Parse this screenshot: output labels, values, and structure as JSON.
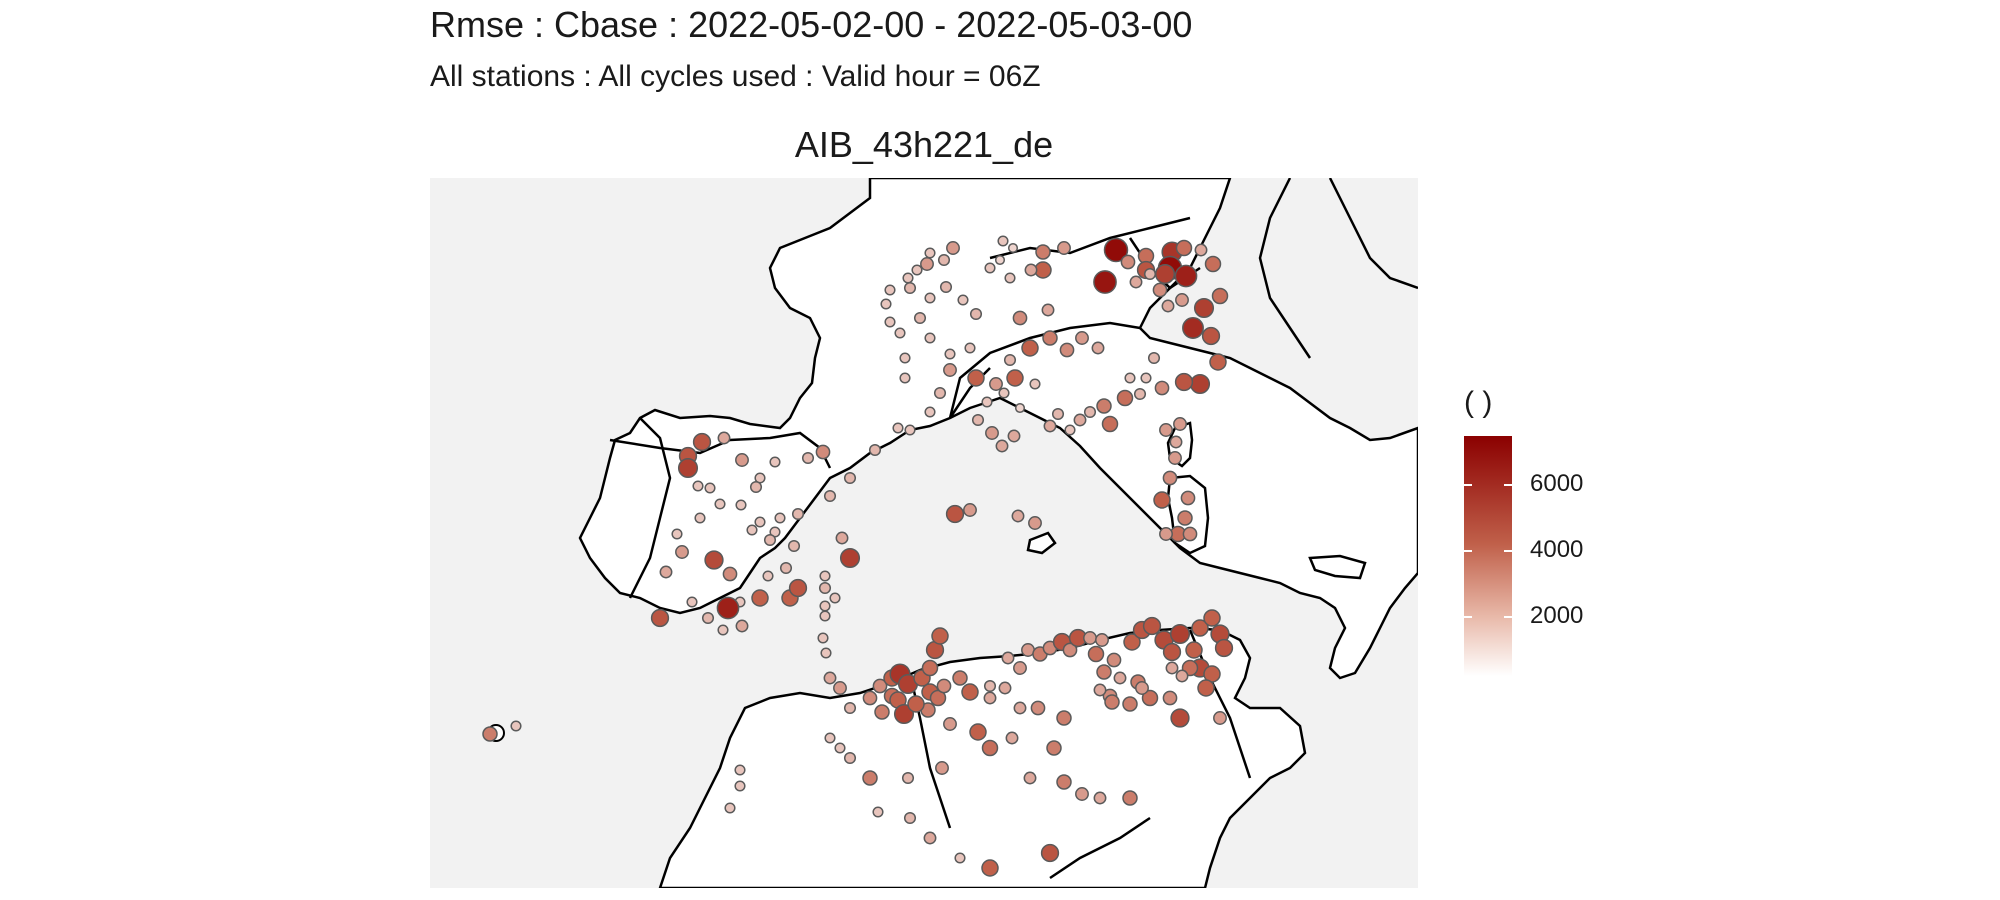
{
  "header": {
    "title": "Rmse : Cbase : 2022-05-02-00 - 2022-05-03-00",
    "subtitle": "All stations : All cycles used : Valid hour = 06Z"
  },
  "panel": {
    "title": "AIB_43h221_de"
  },
  "legend": {
    "title": "( )",
    "ticks": [
      "6000",
      "4000",
      "2000"
    ],
    "colors": {
      "high": "#8b0000",
      "mid": "#c0604a",
      "low": "#ffffff"
    }
  },
  "map": {
    "sea_color": "#f2f2f2",
    "land_color": "#ffffff",
    "border_color": "#000000",
    "station_count_note": ""
  }
}
